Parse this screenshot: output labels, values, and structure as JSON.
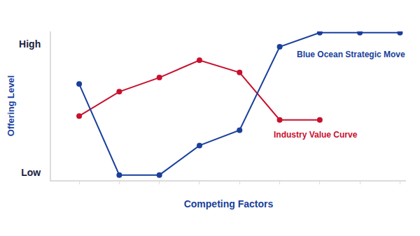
{
  "chart_data": {
    "type": "line",
    "x_label": "Competing Factors",
    "y_label": "Offering Level",
    "categories": [
      null,
      null,
      null,
      null,
      null,
      null,
      null,
      null,
      null
    ],
    "ylim": [
      -0.6,
      11
    ],
    "yticks": [
      {
        "value": 0,
        "label": "Low"
      },
      {
        "value": 10,
        "label": "High"
      }
    ],
    "grid": false,
    "marker": "circle",
    "series": [
      {
        "name": "Industry Value Curve",
        "color": "#c8102e",
        "values": [
          4.4,
          6.3,
          7.4,
          8.75,
          7.8,
          4.1,
          4.1,
          null,
          null
        ]
      },
      {
        "name": "Blue Ocean Strategic Move",
        "color": "#1a3f9c",
        "values": [
          6.9,
          -0.2,
          -0.2,
          2.1,
          3.3,
          9.8,
          10.9,
          10.9,
          10.9
        ]
      }
    ]
  }
}
